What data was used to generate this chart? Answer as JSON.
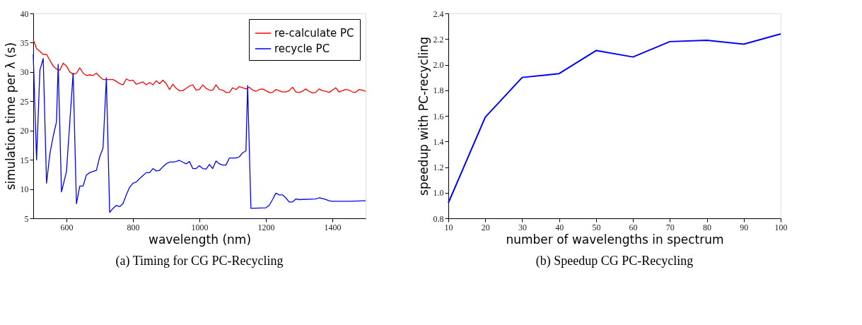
{
  "chart_data": [
    {
      "type": "line",
      "xlabel": "wavelength (nm)",
      "ylabel": "simulation time per λ (s)",
      "xlim": [
        500,
        1500
      ],
      "xticks": [
        600,
        800,
        1000,
        1200,
        1400
      ],
      "ylim": [
        5,
        40
      ],
      "yticks": [
        5,
        10,
        15,
        20,
        25,
        30,
        35,
        40
      ],
      "grid": false,
      "legend": "top right",
      "annotations": [
        "(a) Timing for CG PC-Recycling"
      ],
      "series": [
        {
          "name": "re-calculate PC",
          "color": "#ff0000",
          "x": [
            500,
            510,
            520,
            530,
            540,
            550,
            560,
            570,
            580,
            590,
            600,
            610,
            620,
            630,
            640,
            650,
            660,
            670,
            680,
            690,
            700,
            710,
            720,
            740,
            750,
            760,
            770,
            780,
            790,
            800,
            810,
            820,
            830,
            840,
            850,
            860,
            870,
            880,
            890,
            900,
            910,
            920,
            930,
            940,
            950,
            960,
            970,
            980,
            990,
            1000,
            1010,
            1020,
            1030,
            1040,
            1050,
            1060,
            1070,
            1080,
            1090,
            1100,
            1110,
            1120,
            1130,
            1140,
            1150,
            1160,
            1170,
            1180,
            1190,
            1200,
            1210,
            1220,
            1230,
            1240,
            1250,
            1260,
            1270,
            1280,
            1290,
            1300,
            1310,
            1320,
            1330,
            1340,
            1350,
            1360,
            1370,
            1380,
            1390,
            1400,
            1410,
            1420,
            1430,
            1440,
            1450,
            1460,
            1470,
            1480,
            1490,
            1500
          ],
          "values": [
            35.5,
            34,
            33.5,
            33,
            33,
            32,
            31,
            30.5,
            30.3,
            31.5,
            31,
            30,
            29.6,
            29.8,
            30.7,
            29.8,
            29.4,
            29.5,
            29.4,
            29.8,
            29.2,
            28.7,
            28.7,
            28.7,
            28.4,
            28,
            27.8,
            28.8,
            28.5,
            28.6,
            27.9,
            28.1,
            28.3,
            27.8,
            28.2,
            27.8,
            28.5,
            28,
            28.6,
            28,
            27,
            27.9,
            27.2,
            26.8,
            26.8,
            27.2,
            27.6,
            27.8,
            26.9,
            27,
            27.8,
            27.2,
            26.9,
            26.9,
            27.8,
            27,
            26.9,
            26.5,
            26.5,
            27.3,
            27,
            27.5,
            27.3,
            27.1,
            27.4,
            26.9,
            26.7,
            27,
            27.1,
            26.8,
            26.5,
            26.5,
            27,
            26.8,
            26.6,
            26.6,
            26.8,
            27.4,
            26.6,
            26.5,
            26.7,
            27.1,
            26.7,
            26.4,
            26.5,
            27.1,
            26.8,
            26.7,
            26.5,
            26.9,
            27.3,
            26.6,
            26.8,
            27,
            26.9,
            26.6,
            26.5,
            27,
            26.9,
            26.7
          ]
        },
        {
          "name": "recycle PC",
          "color": "#0000ff",
          "x": [
            500,
            510,
            520,
            530,
            540,
            550,
            560,
            570,
            575,
            585,
            600,
            620,
            630,
            640,
            650,
            660,
            670,
            680,
            690,
            700,
            710,
            720,
            730,
            740,
            750,
            760,
            770,
            780,
            790,
            800,
            810,
            820,
            830,
            840,
            850,
            860,
            870,
            880,
            890,
            900,
            910,
            920,
            930,
            940,
            950,
            960,
            970,
            980,
            990,
            1000,
            1010,
            1020,
            1030,
            1040,
            1050,
            1060,
            1070,
            1080,
            1090,
            1100,
            1110,
            1120,
            1130,
            1140,
            1145,
            1155,
            1200,
            1210,
            1220,
            1230,
            1240,
            1250,
            1260,
            1270,
            1280,
            1290,
            1300,
            1350,
            1360,
            1370,
            1380,
            1390,
            1400,
            1450,
            1500
          ],
          "values": [
            33,
            15,
            30.3,
            32.3,
            11,
            16,
            19,
            21.5,
            31.3,
            9.5,
            13,
            29.8,
            7.5,
            10.5,
            10.5,
            12.4,
            12.8,
            13,
            13.2,
            15.5,
            17,
            29,
            6,
            6.7,
            7.2,
            7,
            7.5,
            9,
            10.3,
            11,
            11.2,
            11.8,
            12.3,
            12.8,
            12.8,
            13.5,
            13.1,
            13.2,
            13.8,
            14.3,
            14.6,
            14.6,
            14.7,
            14.9,
            14.6,
            14.3,
            14.7,
            13.5,
            13.5,
            14,
            13.5,
            13.4,
            14.2,
            13.5,
            14.8,
            14.3,
            14.1,
            14.1,
            15.3,
            15.3,
            15.3,
            15.5,
            16.2,
            16.5,
            27.7,
            6.7,
            6.8,
            7.2,
            8.2,
            9.3,
            9,
            9,
            8.5,
            7.8,
            7.8,
            8.3,
            8.2,
            8.3,
            8.5,
            8.4,
            8.2,
            8,
            7.9,
            7.9,
            8
          ]
        }
      ]
    },
    {
      "type": "line",
      "xlabel": "number of wavelengths in spectrum",
      "ylabel": "speedup with PC-recycling",
      "xlim": [
        10,
        100
      ],
      "xticks": [
        10,
        20,
        30,
        40,
        50,
        60,
        70,
        80,
        90,
        100
      ],
      "ylim": [
        0.8,
        2.4
      ],
      "yticks": [
        {
          "value": 0.8,
          "label": "0.8"
        },
        {
          "value": 1.0,
          "label": "1.0"
        },
        {
          "value": 1.2,
          "label": "1.2"
        },
        {
          "value": 1.4,
          "label": "1.4"
        },
        {
          "value": 1.6,
          "label": "1.6"
        },
        {
          "value": 1.8,
          "label": "1.8"
        },
        {
          "value": 2.0,
          "label": "2.0"
        },
        {
          "value": 2.2,
          "label": "2.2"
        },
        {
          "value": 2.4,
          "label": "2.4"
        }
      ],
      "grid": false,
      "annotations": [
        "(b) Speedup CG PC-Recycling"
      ],
      "series": [
        {
          "color": "#0000ff",
          "x": [
            10,
            20,
            30,
            40,
            50,
            60,
            70,
            80,
            90,
            100
          ],
          "values": [
            0.92,
            1.59,
            1.9,
            1.93,
            2.11,
            2.06,
            2.18,
            2.19,
            2.16,
            2.24
          ]
        }
      ]
    }
  ]
}
